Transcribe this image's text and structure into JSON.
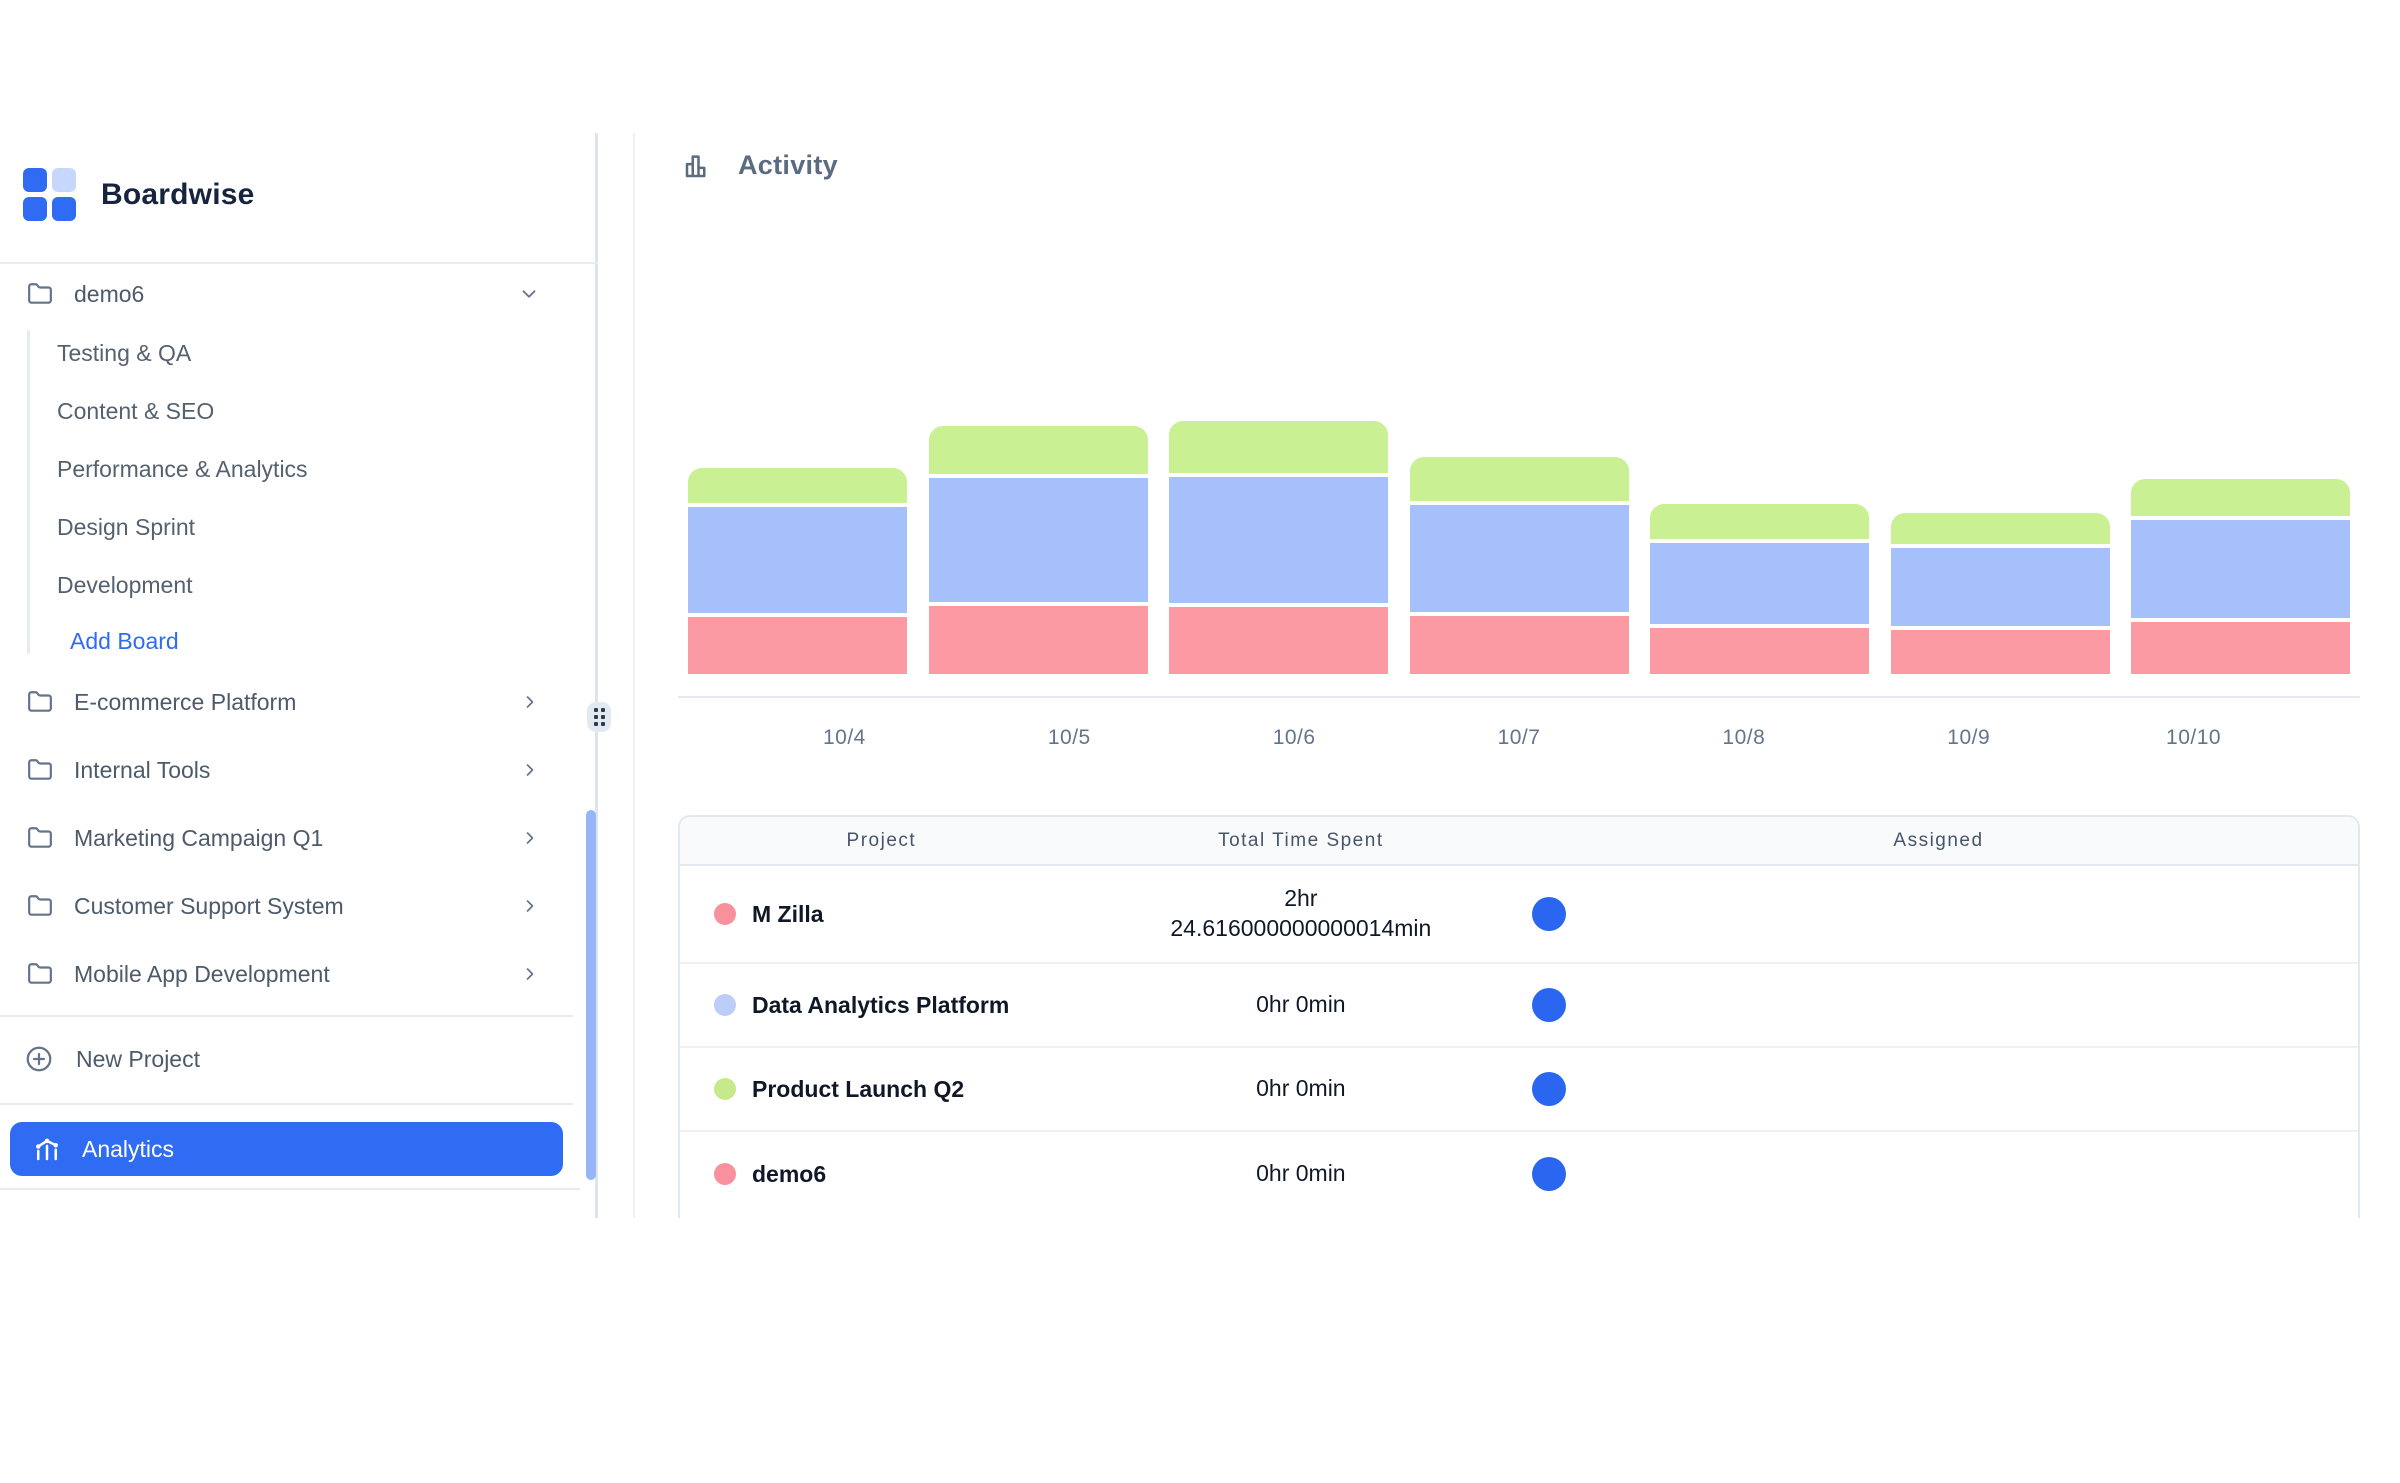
{
  "sidebar": {
    "brand": "Boardwise",
    "projects": [
      {
        "label": "demo6",
        "expanded": true,
        "boards": [
          "Testing & QA",
          "Content & SEO",
          "Performance & Analytics",
          "Design Sprint",
          "Development"
        ],
        "add_board_label": "Add Board"
      },
      {
        "label": "E-commerce Platform",
        "expanded": false
      },
      {
        "label": "Internal Tools",
        "expanded": false
      },
      {
        "label": "Marketing Campaign Q1",
        "expanded": false
      },
      {
        "label": "Customer Support System",
        "expanded": false
      },
      {
        "label": "Mobile App Development",
        "expanded": false
      }
    ],
    "new_project_label": "New Project",
    "analytics_label": "Analytics"
  },
  "main": {
    "section_title": "Activity",
    "table": {
      "headers": [
        "Project",
        "Total Time Spent",
        "Assigned"
      ],
      "rows": [
        {
          "project": "M Zilla",
          "dot_color": "#F9909D",
          "time": "2hr\n24.616000000000014min"
        },
        {
          "project": "Data Analytics Platform",
          "dot_color": "#BCCDFA",
          "time": "0hr 0min"
        },
        {
          "project": "Product Launch Q2",
          "dot_color": "#C6EA8B",
          "time": "0hr 0min"
        },
        {
          "project": "demo6",
          "dot_color": "#F9909D",
          "time": "0hr 0min"
        }
      ],
      "avatar_color": "#2B66F1"
    }
  },
  "chart_data": {
    "type": "bar",
    "stacked": true,
    "title": "Activity",
    "categories": [
      "10/4",
      "10/5",
      "10/6",
      "10/7",
      "10/8",
      "10/9",
      "10/10"
    ],
    "series": [
      {
        "name": "M Zilla",
        "color": "#FC9AA4",
        "values": [
          57,
          68,
          67,
          58,
          46,
          44,
          52
        ]
      },
      {
        "name": "Data Analytics Platform",
        "color": "#A5C0FA",
        "values": [
          106,
          124,
          126,
          107,
          81,
          78,
          98
        ]
      },
      {
        "name": "Product Launch Q2",
        "color": "#C9F093",
        "values": [
          35,
          48,
          52,
          44,
          35,
          31,
          37
        ]
      }
    ],
    "unit": "relative activity (no y-axis labels shown; values estimated from bar heights)",
    "xlabel": "",
    "ylabel": "",
    "grid": false,
    "legend_position": "none"
  },
  "colors": {
    "accent_blue": "#2F6BF3",
    "logo_blue": "#2F6BF3",
    "logo_light_blue": "#C6D7FB",
    "scrollbar_thumb": "#97B5F8",
    "table_header_bg": "#F8FAFC",
    "border": "#E3E8EF"
  }
}
